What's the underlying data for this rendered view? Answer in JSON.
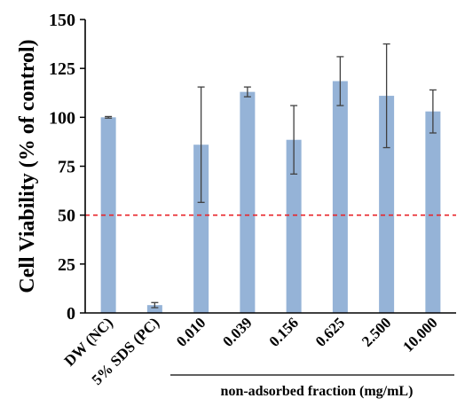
{
  "chart_data": {
    "type": "bar",
    "title": "",
    "xlabel": "",
    "ylabel": "Cell Viability (% of control)",
    "ylim": [
      0,
      150
    ],
    "yticks": [
      "0",
      "25",
      "50",
      "75",
      "100",
      "125",
      "150"
    ],
    "categories": [
      "DW (NC)",
      "5% SDS (PC)",
      "0.010",
      "0.039",
      "0.156",
      "0.625",
      "2.500",
      "10.000"
    ],
    "values": [
      100,
      4,
      86,
      113,
      88.5,
      118.5,
      111,
      103
    ],
    "errors": [
      0.4,
      1.3,
      29.5,
      2.5,
      17.5,
      12.5,
      26.5,
      11
    ],
    "group_label": "non-adsorbed fraction (mg/mL)",
    "reference_line": {
      "value": 50,
      "style": "dashed"
    },
    "grid": false,
    "colors": {
      "bar": "#95b3d7",
      "error_bar": "#404040",
      "reference_line": "#e8242a",
      "axis": "#000000"
    }
  }
}
